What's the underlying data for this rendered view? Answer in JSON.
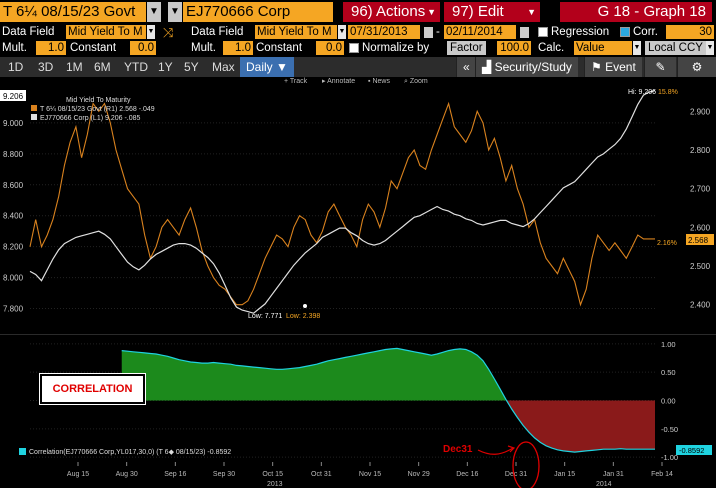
{
  "header": {
    "ticker1": "T 6¼ 08/15/23 Govt",
    "ticker2": "EJ770666 Corp",
    "actions_label": "96) Actions",
    "edit_label": "97) Edit",
    "graph_title": "G 18 - Graph 18"
  },
  "settings_row1": {
    "data_field_label": "Data Field",
    "data_field_value": "Mid Yield To M",
    "data_field2_label": "Data Field",
    "data_field2_value": "Mid Yield To M",
    "start_date": "07/31/2013",
    "end_date": "02/11/2014",
    "regression_label": "Regression",
    "corr_label": "Corr.",
    "corr_window": "30"
  },
  "settings_row2": {
    "mult_label": "Mult.",
    "mult_value": "1.0",
    "constant_label": "Constant",
    "constant_value": "0.0",
    "mult2_label": "Mult.",
    "mult2_value": "1.0",
    "constant2_label": "Constant",
    "constant2_value": "0.0",
    "normalize_label": "Normalize by",
    "factor_label": "Factor",
    "factor_value": "100.0",
    "calc_label": "Calc.",
    "calc_value": "Value",
    "currency_label": "Local CCY"
  },
  "toolbar": {
    "periods": [
      "1D",
      "3D",
      "1M",
      "6M",
      "YTD",
      "1Y",
      "5Y",
      "Max"
    ],
    "frequency": "Daily ▼",
    "collapse_icon": "«",
    "security_study": "Security/Study",
    "event": "Event",
    "track": "Track",
    "annotate": "Annotate",
    "news": "News",
    "zoom": "Zoom"
  },
  "legend": {
    "title": "Mid Yield To Maturity",
    "series1": "T 6¼ 08/15/23 Govt (R1) 2.568 -.049",
    "series2": "EJ770666 Corp  (L1)          9.206 -.085"
  },
  "annotations": {
    "hi": "Hi: 9.206",
    "hi2": "15.8%",
    "low1": "Low: 7.771",
    "low2": "Low: 2.398",
    "pct": "2.16%",
    "left_current": "9.206",
    "right_current": "2.568",
    "bottom_current": "-0.8592",
    "correlation_box": "CORRELATION",
    "dec31": "Dec31",
    "correlation_legend": "Correlation(EJ770666 Corp,YL017,30,0) (T 6◆ 08/15/23) -0.8592",
    "year_2013": "2013",
    "year_2014": "2014"
  },
  "colors": {
    "orange": "#f5a623",
    "red": "#b3001b",
    "white_series": "#e0e0e0",
    "orange_series": "#d9821e",
    "green_fill": "#1c8a1c",
    "red_fill": "#8a1a1a",
    "cyan": "#1fd3e0"
  },
  "chart_data": [
    {
      "type": "line",
      "x_ticks": [
        "Aug 15",
        "Aug 30",
        "Sep 16",
        "Sep 30",
        "Oct 15",
        "Oct 31",
        "Nov 15",
        "Nov 29",
        "Dec 16",
        "Dec 31",
        "Jan 15",
        "Jan 31",
        "Feb 14"
      ],
      "left_axis": {
        "ticks": [
          7.8,
          8.0,
          8.2,
          8.4,
          8.6,
          8.8,
          9.0
        ],
        "ylim": [
          7.7,
          9.2
        ]
      },
      "right_axis": {
        "ticks": [
          2.4,
          2.5,
          2.6,
          2.7,
          2.8,
          2.9
        ],
        "ylim": [
          2.35,
          2.95
        ]
      },
      "series": [
        {
          "name": "EJ770666 Corp (L1)",
          "axis": "left",
          "values": [
            8.04,
            8.02,
            7.98,
            8.05,
            8.12,
            8.18,
            8.22,
            8.24,
            8.26,
            8.27,
            8.28,
            8.29,
            8.3,
            8.28,
            8.25,
            8.2,
            8.15,
            8.1,
            8.07,
            8.05,
            8.08,
            8.12,
            8.15,
            8.17,
            8.19,
            8.21,
            8.22,
            8.22,
            8.21,
            8.19,
            8.16,
            8.13,
            8.09,
            8.03,
            7.95,
            7.87,
            7.81,
            7.79,
            7.78,
            7.77,
            7.8,
            7.83,
            7.88,
            7.93,
            7.98,
            8.03,
            8.08,
            8.12,
            8.16,
            8.19,
            8.22,
            8.26,
            8.28,
            8.3,
            8.32,
            8.32,
            8.29,
            8.27,
            8.24,
            8.22,
            8.21,
            8.22,
            8.24,
            8.27,
            8.3,
            8.33,
            8.36,
            8.39,
            8.4,
            8.42,
            8.44,
            8.46,
            8.44,
            8.43,
            8.41,
            8.4,
            8.38,
            8.37,
            8.35,
            8.34,
            8.35,
            8.36,
            8.37,
            8.37,
            8.35,
            8.34,
            8.33,
            8.35,
            8.38,
            8.42,
            8.46,
            8.5,
            8.54,
            8.58,
            8.6,
            8.62,
            8.66,
            8.7,
            8.74,
            8.78,
            8.8,
            8.83,
            8.86,
            8.9,
            8.96,
            9.04,
            9.12,
            9.18,
            9.2,
            9.21
          ]
        },
        {
          "name": "T 6¼ 08/15/23 Govt (R1)",
          "axis": "right",
          "values": [
            2.55,
            2.62,
            2.55,
            2.58,
            2.62,
            2.68,
            2.76,
            2.82,
            2.86,
            2.78,
            2.84,
            2.92,
            2.9,
            2.92,
            2.87,
            2.8,
            2.75,
            2.7,
            2.68,
            2.66,
            2.58,
            2.52,
            2.55,
            2.6,
            2.62,
            2.6,
            2.58,
            2.62,
            2.65,
            2.6,
            2.54,
            2.5,
            2.47,
            2.45,
            2.44,
            2.42,
            2.4,
            2.4,
            2.41,
            2.44,
            2.48,
            2.52,
            2.55,
            2.58,
            2.57,
            2.55,
            2.6,
            2.63,
            2.62,
            2.58,
            2.56,
            2.59,
            2.64,
            2.66,
            2.63,
            2.6,
            2.58,
            2.55,
            2.62,
            2.66,
            2.64,
            2.6,
            2.65,
            2.72,
            2.7,
            2.74,
            2.78,
            2.8,
            2.76,
            2.75,
            2.8,
            2.84,
            2.88,
            2.92,
            2.86,
            2.84,
            2.82,
            2.85,
            2.9,
            2.87,
            2.8,
            2.83,
            2.78,
            2.72,
            2.76,
            2.7,
            2.66,
            2.6,
            2.62,
            2.56,
            2.52,
            2.5,
            2.48,
            2.52,
            2.49,
            2.46,
            2.4,
            2.44,
            2.52,
            2.58,
            2.56,
            2.54,
            2.56,
            2.54,
            2.52,
            2.55,
            2.58,
            2.57,
            2.57,
            2.57
          ]
        }
      ]
    },
    {
      "type": "area",
      "title": "Correlation",
      "y_ticks": [
        1.0,
        0.5,
        0.0,
        -0.5,
        -1.0
      ],
      "ylim": [
        -1.05,
        1.05
      ],
      "x_ticks": [
        "Aug 15",
        "Aug 30",
        "Sep 16",
        "Sep 30",
        "Oct 15",
        "Oct 31",
        "Nov 15",
        "Nov 29",
        "Dec 16",
        "Dec 31",
        "Jan 15",
        "Jan 31",
        "Feb 14"
      ],
      "start_index": 16,
      "values": [
        0.88,
        0.87,
        0.86,
        0.85,
        0.84,
        0.83,
        0.82,
        0.8,
        0.78,
        0.75,
        0.72,
        0.7,
        0.68,
        0.67,
        0.66,
        0.66,
        0.67,
        0.66,
        0.65,
        0.64,
        0.62,
        0.61,
        0.6,
        0.59,
        0.58,
        0.57,
        0.56,
        0.55,
        0.55,
        0.56,
        0.57,
        0.58,
        0.6,
        0.62,
        0.64,
        0.67,
        0.7,
        0.72,
        0.74,
        0.76,
        0.78,
        0.8,
        0.82,
        0.84,
        0.86,
        0.88,
        0.9,
        0.91,
        0.92,
        0.9,
        0.88,
        0.86,
        0.84,
        0.82,
        0.8,
        0.82,
        0.85,
        0.88,
        0.9,
        0.91,
        0.9,
        0.86,
        0.8,
        0.7,
        0.55,
        0.38,
        0.2,
        0.02,
        -0.15,
        -0.3,
        -0.44,
        -0.56,
        -0.66,
        -0.74,
        -0.8,
        -0.84,
        -0.87,
        -0.89,
        -0.9,
        -0.91,
        -0.9,
        -0.89,
        -0.88,
        -0.87,
        -0.86,
        -0.86,
        -0.86,
        -0.85,
        -0.86,
        -0.86,
        -0.86,
        -0.86,
        -0.86,
        -0.86
      ]
    }
  ]
}
